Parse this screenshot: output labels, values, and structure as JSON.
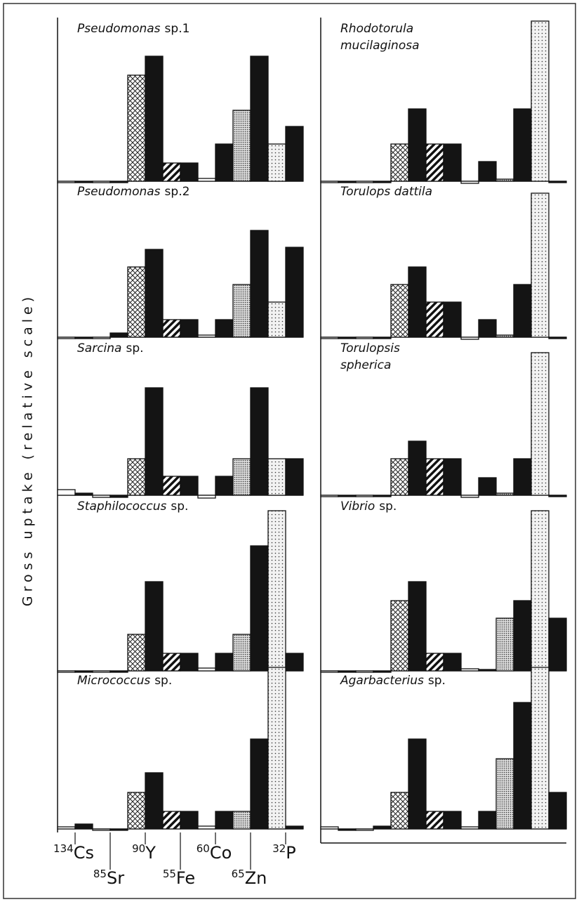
{
  "y_label": "Gross uptake (relative scale)",
  "isotopes": [
    {
      "mass": "134",
      "element": "Cs"
    },
    {
      "mass": "85",
      "element": "Sr"
    },
    {
      "mass": "90",
      "element": "Y"
    },
    {
      "mass": "55",
      "element": "Fe"
    },
    {
      "mass": "60",
      "element": "Co"
    },
    {
      "mass": "65",
      "element": "Zn"
    },
    {
      "mass": "32",
      "element": "P"
    }
  ],
  "bar_fills": [
    "white",
    "black",
    "white",
    "black",
    "crosshatch",
    "black",
    "hatch",
    "black",
    "white",
    "black",
    "dots-dense",
    "black",
    "dots",
    "black"
  ],
  "chart_data": [
    {
      "type": "bar",
      "title_italic": [
        "Pseudomonas"
      ],
      "title_roman": "sp.1",
      "ylim": [
        -10,
        235
      ],
      "values": [
        -2,
        -2,
        -2,
        -2,
        151,
        178,
        26,
        26,
        4,
        53,
        101,
        178,
        53,
        78
      ]
    },
    {
      "type": "bar",
      "title_italic": [
        "Pseudomonas"
      ],
      "title_roman": "sp.2",
      "ylim": [
        -10,
        235
      ],
      "values": [
        -2,
        -2,
        -2,
        6,
        100,
        125,
        25,
        25,
        3,
        25,
        75,
        152,
        50,
        128
      ]
    },
    {
      "type": "bar",
      "title_italic": [
        "Sarcina"
      ],
      "title_roman": "sp.",
      "ylim": [
        -10,
        235
      ],
      "values": [
        8,
        3,
        -3,
        -3,
        52,
        153,
        27,
        27,
        -4,
        27,
        52,
        153,
        52,
        52
      ]
    },
    {
      "type": "bar",
      "title_italic": [
        "Staphilococcus"
      ],
      "title_roman": "sp.",
      "ylim": [
        -10,
        235
      ],
      "values": [
        -2,
        -2,
        -2,
        -2,
        52,
        127,
        25,
        25,
        4,
        25,
        52,
        178,
        228,
        25
      ]
    },
    {
      "type": "bar",
      "title_italic": [
        "Micrococcus"
      ],
      "title_roman": "sp.",
      "ylim": [
        -10,
        235
      ],
      "values": [
        3,
        7,
        -2,
        -2,
        52,
        80,
        25,
        25,
        4,
        25,
        25,
        128,
        230,
        4
      ]
    },
    {
      "type": "bar",
      "title_italic": [
        "Rhodotorula",
        "mucilaginosa"
      ],
      "ylim": [
        -10,
        235
      ],
      "values": [
        -2,
        -2,
        -2,
        -2,
        53,
        103,
        53,
        53,
        -3,
        28,
        3,
        103,
        228,
        -2
      ]
    },
    {
      "type": "bar",
      "title_italic": [
        "Torulops  dattila"
      ],
      "ylim": [
        -10,
        235
      ],
      "values": [
        -2,
        -2,
        -2,
        -2,
        75,
        100,
        50,
        50,
        -3,
        25,
        3,
        75,
        205,
        -2
      ]
    },
    {
      "type": "bar",
      "title_italic": [
        "Torulopsis",
        "spherica"
      ],
      "ylim": [
        -10,
        235
      ],
      "values": [
        -2,
        -2,
        -2,
        -2,
        52,
        77,
        52,
        52,
        -3,
        25,
        3,
        52,
        203,
        -2
      ]
    },
    {
      "type": "bar",
      "title_italic": [
        "Vibrio"
      ],
      "title_roman": "sp.",
      "ylim": [
        -10,
        235
      ],
      "values": [
        -2,
        -2,
        -2,
        -2,
        100,
        127,
        25,
        25,
        3,
        2,
        75,
        100,
        228,
        75
      ]
    },
    {
      "type": "bar",
      "title_italic": [
        "Agarbacterius"
      ],
      "title_roman": "sp.",
      "ylim": [
        -10,
        235
      ],
      "values": [
        3,
        -2,
        -2,
        4,
        52,
        128,
        25,
        25,
        3,
        25,
        100,
        180,
        230,
        52
      ]
    }
  ]
}
